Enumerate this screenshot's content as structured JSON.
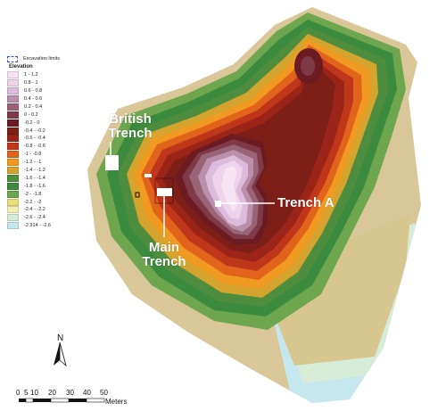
{
  "legend": {
    "excavation_label": "Excavation limits",
    "title": "Elevation",
    "classes": [
      {
        "label": "1 - 1.2",
        "color": "#f7e4f2"
      },
      {
        "label": "0.8 - 1",
        "color": "#efd3ea"
      },
      {
        "label": "0.6 - 0.8",
        "color": "#ddbcdb"
      },
      {
        "label": "0.4 - 0.6",
        "color": "#b98fab"
      },
      {
        "label": "0.2 - 0.4",
        "color": "#9a6477"
      },
      {
        "label": "0 - 0.2",
        "color": "#7e3a49"
      },
      {
        "label": "-0.2 - 0",
        "color": "#6b1b22"
      },
      {
        "label": "-0.4 - -0.2",
        "color": "#7d1f17"
      },
      {
        "label": "-0.6 - -0.4",
        "color": "#9a2417"
      },
      {
        "label": "-0.8 - -0.6",
        "color": "#c0361a"
      },
      {
        "label": "-1 - -0.8",
        "color": "#e2631c"
      },
      {
        "label": "-1.2 - -1",
        "color": "#f19a22"
      },
      {
        "label": "-1.4 - -1.2",
        "color": "#d4a42e"
      },
      {
        "label": "-1.6 - -1.4",
        "color": "#4f8d3e"
      },
      {
        "label": "-1.8 - -1.6",
        "color": "#3b8a3d"
      },
      {
        "label": "-2 - -1.8",
        "color": "#6ea64f"
      },
      {
        "label": "-2.2 - -2",
        "color": "#e7e07a"
      },
      {
        "label": "-2.4 - -2.2",
        "color": "#f4edb0"
      },
      {
        "label": "-2.6 - -2.4",
        "color": "#d6ecd8"
      },
      {
        "label": "-2.914 - -2.6",
        "color": "#c4e8ee"
      }
    ]
  },
  "labels": {
    "british_1": "British",
    "british_2": "Trench",
    "main_1": "Main",
    "main_2": "Trench",
    "trench_a": "Trench A"
  },
  "north": "N",
  "scale": {
    "ticks": [
      "0",
      "5",
      "10",
      "20",
      "30",
      "40",
      "50"
    ],
    "unit": "Meters"
  }
}
